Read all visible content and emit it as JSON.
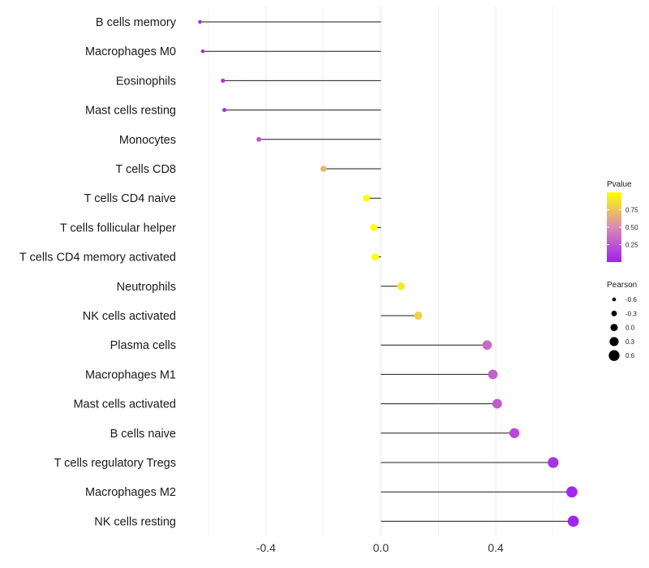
{
  "chart_data": {
    "type": "lollipop",
    "title": "",
    "xlabel": "",
    "ylabel": "",
    "xlim": [
      -0.6,
      0.6
    ],
    "x_ticks": [
      -0.4,
      0.0,
      0.4
    ],
    "x_tick_labels": [
      "-0.4",
      "0.0",
      "0.4"
    ],
    "grid": true,
    "categories": [
      "B cells memory",
      "Macrophages M0",
      "Eosinophils",
      "Mast cells resting",
      "Monocytes",
      "T cells CD8",
      "T cells CD4 naive",
      "T cells follicular helper",
      "T cells CD4 memory activated",
      "Neutrophils",
      "NK cells activated",
      "Plasma cells",
      "Macrophages M1",
      "Mast cells activated",
      "B cells naive",
      "T cells regulatory  Tregs ",
      "Macrophages M2",
      "NK cells resting"
    ],
    "series": [
      {
        "name": "Pearson",
        "values": [
          -0.63,
          -0.62,
          -0.55,
          -0.545,
          -0.425,
          -0.2,
          -0.05,
          -0.025,
          -0.02,
          0.07,
          0.13,
          0.37,
          0.39,
          0.405,
          0.465,
          0.6,
          0.665,
          0.67
        ]
      },
      {
        "name": "Pvalue",
        "values": [
          0.05,
          0.05,
          0.07,
          0.08,
          0.25,
          0.7,
          1.0,
          1.0,
          1.0,
          0.9,
          0.8,
          0.35,
          0.3,
          0.28,
          0.2,
          0.08,
          0.03,
          0.02
        ]
      }
    ],
    "legend_position": "right",
    "legend": {
      "color": {
        "title": "Pvalue",
        "ticks": [
          0.25,
          0.5,
          0.75
        ],
        "tick_labels": [
          "0.25",
          "0.50",
          "0.75"
        ],
        "low_color": "#a020f0",
        "high_color": "#ffff00",
        "range": [
          0.0,
          1.0
        ]
      },
      "size": {
        "title": "Pearson",
        "values": [
          -0.6,
          -0.3,
          0.0,
          0.3,
          0.6
        ],
        "labels": [
          "-0.6",
          "-0.3",
          "0.0",
          "0.3",
          "0.6"
        ]
      }
    }
  },
  "colors": {
    "stem": "#1a1a1a",
    "grid": "#ebebeb",
    "legend_dot": "#000000"
  }
}
